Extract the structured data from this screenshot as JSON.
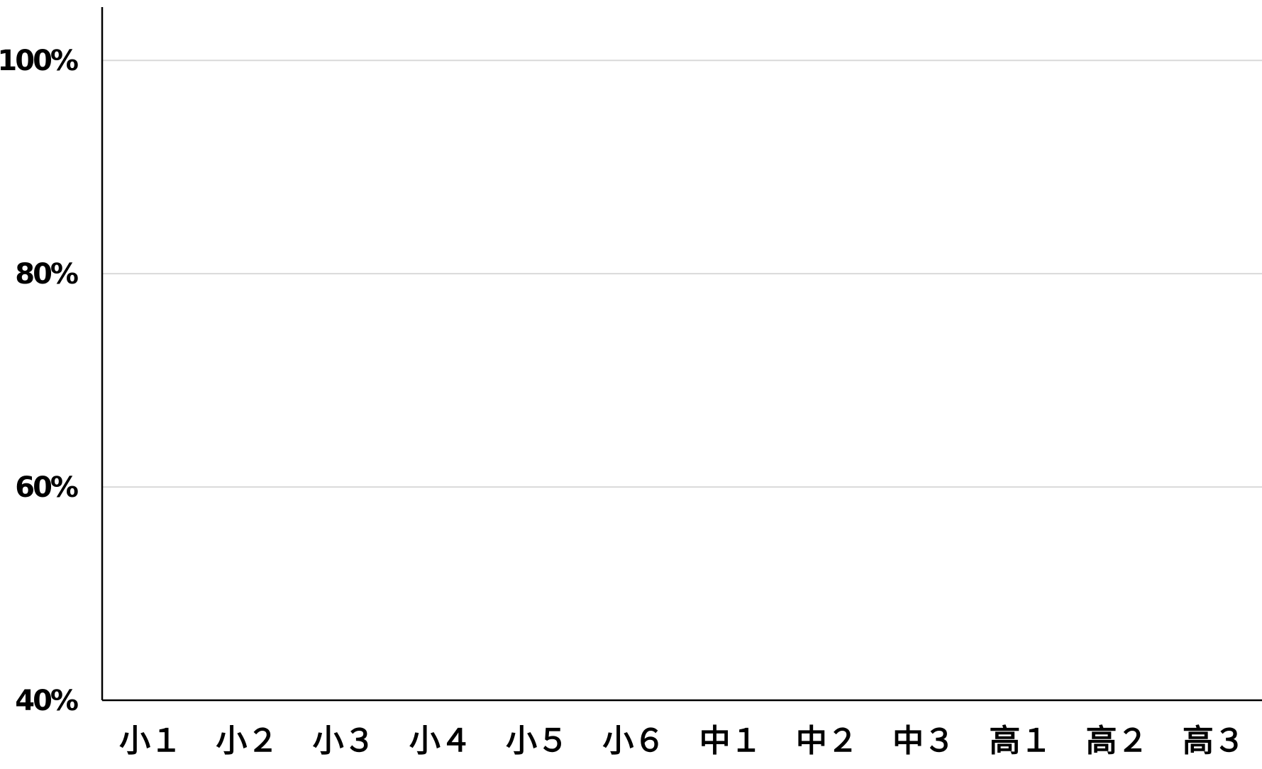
{
  "chart_data": {
    "type": "line",
    "categories": [
      "小１",
      "小２",
      "小３",
      "小４",
      "小５",
      "小６",
      "中１",
      "中２",
      "中３",
      "高１",
      "高２",
      "高３"
    ],
    "series": [],
    "title": "",
    "xlabel": "",
    "ylabel": "",
    "ylim": [
      40,
      105
    ],
    "yticks": [
      40,
      60,
      80,
      100
    ],
    "ytick_labels": [
      "40%",
      "60%",
      "80%",
      "100%"
    ],
    "grid": true,
    "legend": "none",
    "colors": {
      "axis": "#000000",
      "grid": "#d9d9d9",
      "text": "#000000",
      "background": "#ffffff"
    }
  }
}
